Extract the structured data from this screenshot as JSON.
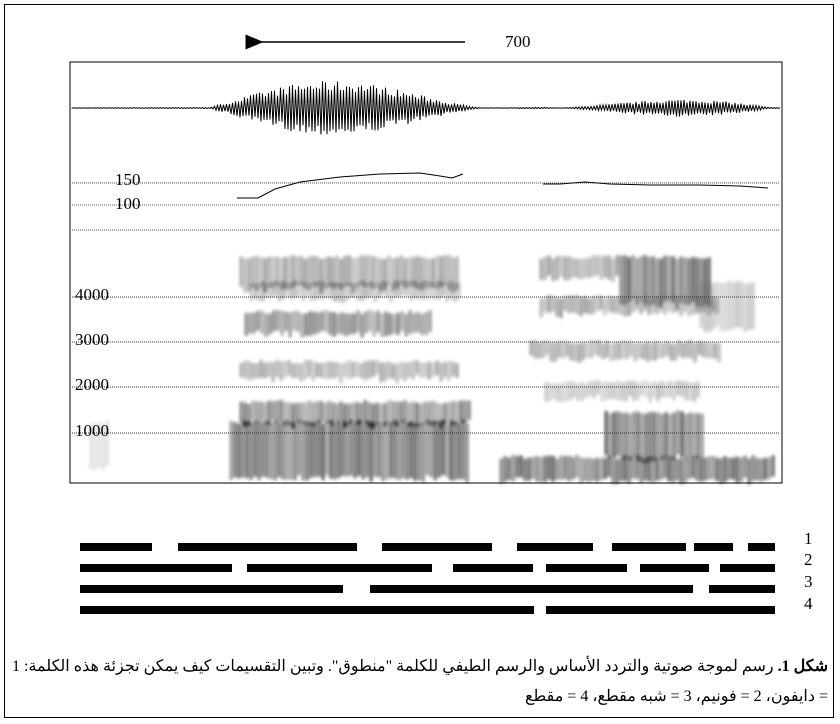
{
  "figure": {
    "arrow_label": "700",
    "pitch_labels": [
      "150",
      "100"
    ],
    "frequency_labels": [
      "4000",
      "3000",
      "2000",
      "1000"
    ],
    "segmentation_labels": [
      "1",
      "2",
      "3",
      "4"
    ],
    "caption": {
      "label": "شكل 1.",
      "text": "رسم لموجة صوتية والتردد الأساس والرسم الطيفي للكلمة \"منطوق\". وتبين التقسيمات كيف يمكن تجزئة هذه الكلمة: 1 = دايفون، 2 = فونيم، 3 = شبه مقطع، 4 = مقطع"
    }
  }
}
